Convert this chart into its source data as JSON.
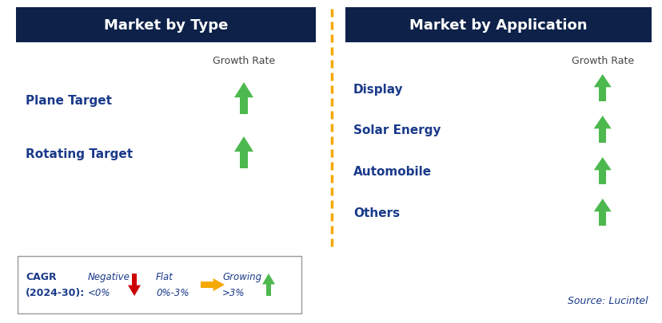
{
  "title_left": "Market by Type",
  "title_right": "Market by Application",
  "header_bg": "#0d2149",
  "header_text_color": "#ffffff",
  "left_items": [
    "Plane Target",
    "Rotating Target"
  ],
  "right_items": [
    "Display",
    "Solar Energy",
    "Automobile",
    "Others"
  ],
  "item_text_color": "#1a3a8a",
  "growth_rate_label": "Growth Rate",
  "growth_rate_color": "#444444",
  "arrow_up_color": "#4db84e",
  "arrow_down_color": "#cc0000",
  "arrow_flat_color": "#f5a800",
  "divider_color": "#f5a800",
  "bg_color": "#ffffff",
  "legend_title_color": "#1a3a8a",
  "legend_items": [
    {
      "label": "Negative",
      "sublabel": "<0%",
      "arrow": "down",
      "color": "#cc0000"
    },
    {
      "label": "Flat",
      "sublabel": "0%-3%",
      "arrow": "right",
      "color": "#f5a800"
    },
    {
      "label": "Growing",
      "sublabel": ">3%",
      "arrow": "up",
      "color": "#4db84e"
    }
  ],
  "source_text": "Source: Lucintel",
  "source_color": "#1a3a8a",
  "fig_width": 8.29,
  "fig_height": 4.06,
  "dpi": 100
}
